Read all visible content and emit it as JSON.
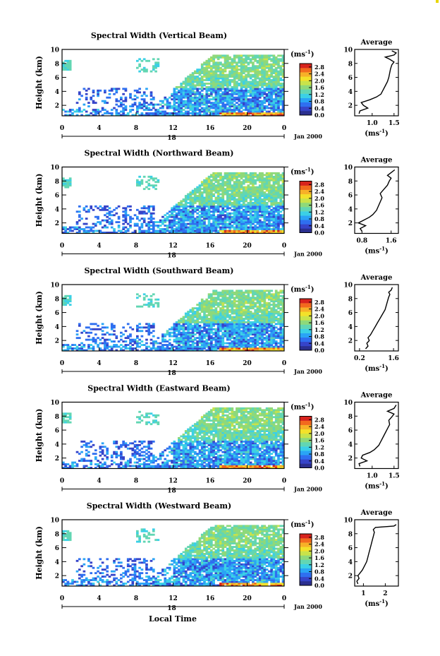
{
  "colors": {
    "colorbar": [
      "#2b2f8f",
      "#3644c9",
      "#2f6ff0",
      "#2aa4f5",
      "#3bd0e6",
      "#62d6b3",
      "#8ed97a",
      "#c9e34a",
      "#f3e12a",
      "#f7b128",
      "#f26a1e",
      "#d7231d"
    ]
  },
  "xlabel": "Local Time",
  "date_label": "Jan 2000",
  "day_label": "18",
  "unit_label": "(ms",
  "unit_sup": "-1",
  "unit_close": ")",
  "average_title": "Average",
  "chart_data": [
    {
      "type": "heatmap",
      "title": "Spectral Width (Vertical Beam)",
      "ylabel": "Height (km)",
      "xlabel": "Local Time",
      "x_ticks": [
        "0",
        "4",
        "8",
        "12",
        "16",
        "20",
        "0"
      ],
      "y_ticks": [
        "2",
        "4",
        "6",
        "8",
        "10"
      ],
      "xlim": [
        0,
        24
      ],
      "ylim": [
        0.5,
        10
      ],
      "colorbar_ticks": [
        "0.0",
        "0.4",
        "0.8",
        "1.2",
        "1.6",
        "2.0",
        "2.4",
        "2.8"
      ],
      "colorbar_range": [
        0,
        3.0
      ],
      "average": {
        "x_ticks": [
          "1.0",
          "1.5"
        ],
        "xlim": [
          0.6,
          1.6
        ],
        "ylim": [
          0.5,
          10
        ],
        "x": [
          0.7,
          0.72,
          0.9,
          0.8,
          0.75,
          0.95,
          1.1,
          1.2,
          1.25,
          1.3,
          1.35,
          1.38,
          1.4,
          1.42,
          1.45,
          1.5,
          1.4,
          1.3,
          1.5,
          1.55,
          1.45
        ],
        "y": [
          0.8,
          1.2,
          1.6,
          2.0,
          2.4,
          2.8,
          3.2,
          3.6,
          4.2,
          4.8,
          5.4,
          6.0,
          6.6,
          7.2,
          7.8,
          8.2,
          8.6,
          8.9,
          9.2,
          9.5,
          9.8
        ]
      }
    },
    {
      "type": "heatmap",
      "title": "Spectral Width (Northward Beam)",
      "ylabel": "Height (km)",
      "xlabel": "Local Time",
      "x_ticks": [
        "0",
        "4",
        "8",
        "12",
        "16",
        "20",
        "0"
      ],
      "y_ticks": [
        "2",
        "4",
        "6",
        "8",
        "10"
      ],
      "xlim": [
        0,
        24
      ],
      "ylim": [
        0.5,
        10
      ],
      "colorbar_ticks": [
        "0.0",
        "0.4",
        "0.8",
        "1.2",
        "1.6",
        "2.0",
        "2.4",
        "2.8"
      ],
      "colorbar_range": [
        0,
        3.0
      ],
      "average": {
        "x_ticks": [
          "0.8",
          "1.6"
        ],
        "xlim": [
          0.6,
          1.8
        ],
        "ylim": [
          0.5,
          10
        ],
        "x": [
          0.8,
          0.75,
          0.9,
          0.7,
          0.85,
          1.0,
          1.1,
          1.2,
          1.25,
          1.3,
          1.35,
          1.3,
          1.4,
          1.5,
          1.55,
          1.6,
          1.5,
          1.6,
          1.7
        ],
        "y": [
          0.8,
          1.2,
          1.6,
          2.0,
          2.4,
          2.8,
          3.2,
          3.8,
          4.4,
          5.0,
          5.6,
          6.2,
          6.8,
          7.4,
          8.0,
          8.4,
          8.8,
          9.2,
          9.6
        ]
      }
    },
    {
      "type": "heatmap",
      "title": "Spectral Width (Southward Beam)",
      "ylabel": "Height (km)",
      "xlabel": "Local Time",
      "x_ticks": [
        "0",
        "4",
        "8",
        "12",
        "16",
        "20",
        "0"
      ],
      "y_ticks": [
        "2",
        "4",
        "6",
        "8",
        "10"
      ],
      "xlim": [
        0,
        24
      ],
      "ylim": [
        0.5,
        10
      ],
      "colorbar_ticks": [
        "0.0",
        "0.4",
        "0.8",
        "1.2",
        "1.6",
        "2.0",
        "2.4",
        "2.8"
      ],
      "colorbar_range": [
        0,
        3.0
      ],
      "average": {
        "x_ticks": [
          "0.2",
          "1.6"
        ],
        "xlim": [
          0.0,
          1.8
        ],
        "ylim": [
          0.5,
          10
        ],
        "x": [
          0.45,
          0.55,
          0.5,
          0.6,
          0.55,
          0.65,
          0.75,
          0.85,
          0.95,
          1.05,
          1.15,
          1.25,
          1.3,
          1.35,
          1.4,
          1.45,
          1.4,
          1.5,
          1.55
        ],
        "y": [
          0.8,
          1.2,
          1.6,
          2.0,
          2.4,
          2.8,
          3.4,
          4.0,
          4.6,
          5.2,
          5.8,
          6.4,
          7.0,
          7.6,
          8.2,
          8.6,
          8.9,
          9.2,
          9.6
        ]
      }
    },
    {
      "type": "heatmap",
      "title": "Spectral Width (Eastward Beam)",
      "ylabel": "Height (km)",
      "xlabel": "Local Time",
      "x_ticks": [
        "0",
        "4",
        "8",
        "12",
        "16",
        "20",
        "0"
      ],
      "y_ticks": [
        "2",
        "4",
        "6",
        "8",
        "10"
      ],
      "xlim": [
        0,
        24
      ],
      "ylim": [
        0.5,
        10
      ],
      "colorbar_ticks": [
        "0.0",
        "0.4",
        "0.8",
        "1.2",
        "1.6",
        "2.0",
        "2.4",
        "2.8"
      ],
      "colorbar_range": [
        0,
        3.0
      ],
      "average": {
        "x_ticks": [
          "1.0",
          "1.5"
        ],
        "xlim": [
          0.6,
          1.6
        ],
        "ylim": [
          0.5,
          10
        ],
        "x": [
          0.72,
          0.7,
          0.88,
          0.75,
          0.78,
          0.95,
          1.05,
          1.15,
          1.2,
          1.25,
          1.3,
          1.35,
          1.4,
          1.38,
          1.45,
          1.5,
          1.35,
          1.5,
          1.55
        ],
        "y": [
          0.8,
          1.2,
          1.6,
          2.0,
          2.4,
          2.8,
          3.2,
          3.8,
          4.4,
          5.0,
          5.6,
          6.2,
          6.8,
          7.4,
          7.9,
          8.3,
          8.7,
          9.1,
          9.6
        ]
      }
    },
    {
      "type": "heatmap",
      "title": "Spectral Width (Westward Beam)",
      "ylabel": "Height (km)",
      "xlabel": "Local Time",
      "x_ticks": [
        "0",
        "4",
        "8",
        "12",
        "16",
        "20",
        "0"
      ],
      "y_ticks": [
        "2",
        "4",
        "6",
        "8",
        "10"
      ],
      "xlim": [
        0,
        24
      ],
      "ylim": [
        0.5,
        10
      ],
      "colorbar_ticks": [
        "0.0",
        "0.4",
        "0.8",
        "1.2",
        "1.6",
        "2.0",
        "2.4",
        "2.8"
      ],
      "colorbar_range": [
        0,
        3.0
      ],
      "average": {
        "x_ticks": [
          "1",
          "2"
        ],
        "xlim": [
          0.6,
          2.6
        ],
        "ylim": [
          0.5,
          10
        ],
        "x": [
          0.75,
          0.7,
          0.8,
          0.75,
          0.85,
          0.95,
          1.05,
          1.15,
          1.2,
          1.25,
          1.3,
          1.35,
          1.4,
          1.45,
          1.5,
          1.45,
          1.55,
          2.4,
          2.5
        ],
        "y": [
          0.8,
          1.2,
          1.6,
          2.0,
          2.4,
          2.8,
          3.4,
          4.0,
          4.6,
          5.2,
          5.8,
          6.4,
          7.0,
          7.6,
          8.2,
          8.6,
          8.9,
          9.1,
          9.3
        ]
      }
    }
  ]
}
